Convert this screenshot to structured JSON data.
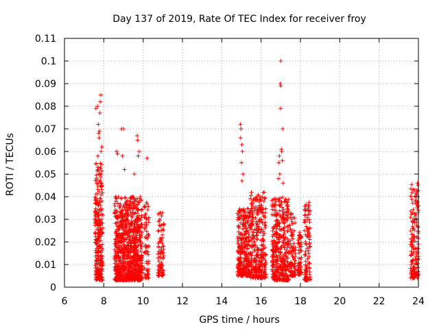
{
  "chart_data": {
    "type": "scatter",
    "title": "Day 137 of 2019, Rate Of TEC Index for receiver froy",
    "xlabel": "GPS time / hours",
    "ylabel": "ROTI / TECUs",
    "xlim": [
      6,
      24
    ],
    "ylim": [
      0,
      0.11
    ],
    "xticks": [
      6,
      8,
      10,
      12,
      14,
      16,
      18,
      20,
      22,
      24
    ],
    "xtick_labels": [
      "6",
      "8",
      "10",
      "12",
      "14",
      "16",
      "18",
      "20",
      "22",
      "24"
    ],
    "yticks": [
      0,
      0.01,
      0.02,
      0.03,
      0.04,
      0.05,
      0.06,
      0.07,
      0.08,
      0.09,
      0.1,
      0.11
    ],
    "ytick_labels": [
      "0",
      "0.01",
      "0.02",
      "0.03",
      "0.04",
      "0.05",
      "0.06",
      "0.07",
      "0.08",
      "0.09",
      "0.1",
      "0.11"
    ],
    "grid": true,
    "marker": "+",
    "color": "#ff0000",
    "series": [
      {
        "name": "ROTI",
        "clusters": [
          {
            "x": [
              7.55,
              7.95
            ],
            "y": [
              0.003,
              0.055
            ],
            "n": 260
          },
          {
            "x": [
              8.55,
              9.95
            ],
            "y": [
              0.003,
              0.04
            ],
            "n": 900
          },
          {
            "x": [
              10.05,
              10.3
            ],
            "y": [
              0.004,
              0.038
            ],
            "n": 70
          },
          {
            "x": [
              10.75,
              11.05
            ],
            "y": [
              0.005,
              0.033
            ],
            "n": 90
          },
          {
            "x": [
              14.8,
              15.45
            ],
            "y": [
              0.005,
              0.035
            ],
            "n": 300
          },
          {
            "x": [
              15.45,
              16.25
            ],
            "y": [
              0.004,
              0.042
            ],
            "n": 320
          },
          {
            "x": [
              16.55,
              17.4
            ],
            "y": [
              0.003,
              0.04
            ],
            "n": 380
          },
          {
            "x": [
              17.45,
              17.75
            ],
            "y": [
              0.005,
              0.033
            ],
            "n": 90
          },
          {
            "x": [
              17.85,
              18.05
            ],
            "y": [
              0.005,
              0.025
            ],
            "n": 60
          },
          {
            "x": [
              18.2,
              18.5
            ],
            "y": [
              0.003,
              0.038
            ],
            "n": 100
          },
          {
            "x": [
              23.6,
              24.0
            ],
            "y": [
              0.004,
              0.046
            ],
            "n": 150
          }
        ],
        "peaks": [
          {
            "x": 7.6,
            "y": 0.079
          },
          {
            "x": 7.68,
            "y": 0.08
          },
          {
            "x": 7.72,
            "y": 0.072
          },
          {
            "x": 7.8,
            "y": 0.077
          },
          {
            "x": 7.85,
            "y": 0.085
          },
          {
            "x": 7.82,
            "y": 0.082
          },
          {
            "x": 7.78,
            "y": 0.069
          },
          {
            "x": 7.74,
            "y": 0.068
          },
          {
            "x": 7.76,
            "y": 0.066
          },
          {
            "x": 7.9,
            "y": 0.062
          },
          {
            "x": 7.86,
            "y": 0.06
          },
          {
            "x": 7.7,
            "y": 0.058
          },
          {
            "x": 8.9,
            "y": 0.07
          },
          {
            "x": 9.0,
            "y": 0.07
          },
          {
            "x": 8.65,
            "y": 0.06
          },
          {
            "x": 8.7,
            "y": 0.059
          },
          {
            "x": 8.95,
            "y": 0.058
          },
          {
            "x": 9.05,
            "y": 0.052
          },
          {
            "x": 9.7,
            "y": 0.067
          },
          {
            "x": 9.72,
            "y": 0.065
          },
          {
            "x": 9.75,
            "y": 0.058
          },
          {
            "x": 9.8,
            "y": 0.06
          },
          {
            "x": 9.55,
            "y": 0.05
          },
          {
            "x": 10.2,
            "y": 0.057
          },
          {
            "x": 14.95,
            "y": 0.072
          },
          {
            "x": 14.98,
            "y": 0.07
          },
          {
            "x": 14.96,
            "y": 0.066
          },
          {
            "x": 15.02,
            "y": 0.063
          },
          {
            "x": 15.05,
            "y": 0.06
          },
          {
            "x": 15.0,
            "y": 0.055
          },
          {
            "x": 15.08,
            "y": 0.05
          },
          {
            "x": 15.03,
            "y": 0.047
          },
          {
            "x": 17.0,
            "y": 0.1
          },
          {
            "x": 16.98,
            "y": 0.09
          },
          {
            "x": 17.0,
            "y": 0.089
          },
          {
            "x": 16.99,
            "y": 0.079
          },
          {
            "x": 17.1,
            "y": 0.07
          },
          {
            "x": 17.03,
            "y": 0.061
          },
          {
            "x": 17.05,
            "y": 0.06
          },
          {
            "x": 16.93,
            "y": 0.058
          },
          {
            "x": 17.08,
            "y": 0.056
          },
          {
            "x": 16.9,
            "y": 0.055
          },
          {
            "x": 16.95,
            "y": 0.05
          },
          {
            "x": 16.88,
            "y": 0.048
          },
          {
            "x": 17.12,
            "y": 0.046
          },
          {
            "x": 23.95,
            "y": 0.046
          },
          {
            "x": 23.9,
            "y": 0.043
          },
          {
            "x": 23.98,
            "y": 0.04
          },
          {
            "x": 23.85,
            "y": 0.038
          }
        ]
      }
    ]
  }
}
